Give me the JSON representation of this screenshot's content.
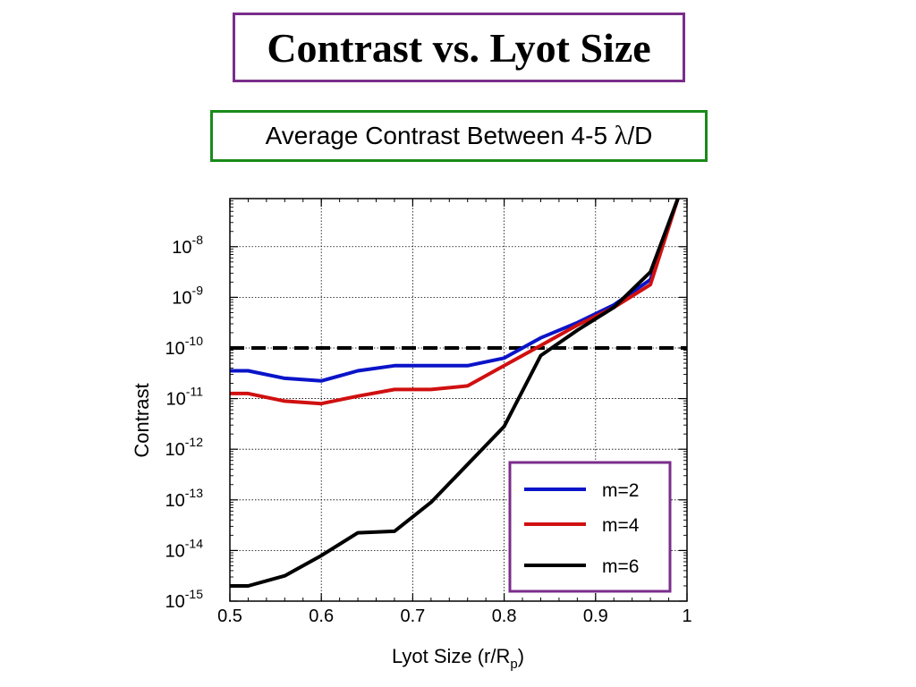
{
  "page": {
    "title": "Contrast vs. Lyot Size",
    "subtitle_prefix": "Average Contrast Between 4-5 ",
    "subtitle_lambda": "λ",
    "subtitle_suffix": "/D"
  },
  "chart_data": {
    "type": "line",
    "xlabel": "Lyot Size (r/R",
    "xlabel_sub": "p",
    "xlabel_close": ")",
    "ylabel": "Contrast",
    "xlim": [
      0.5,
      1.0
    ],
    "ylim_log10": [
      -15,
      -7.05
    ],
    "x_ticks": [
      {
        "value": 0.5,
        "label": "0.5"
      },
      {
        "value": 0.6,
        "label": "0.6"
      },
      {
        "value": 0.7,
        "label": "0.7"
      },
      {
        "value": 0.8,
        "label": "0.8"
      },
      {
        "value": 0.9,
        "label": "0.9"
      },
      {
        "value": 1.0,
        "label": "1"
      }
    ],
    "y_ticks": [
      {
        "exp": -8,
        "base": "10",
        "sup": "-8"
      },
      {
        "exp": -9,
        "base": "10",
        "sup": "-9"
      },
      {
        "exp": -10,
        "base": "10",
        "sup": "-10"
      },
      {
        "exp": -11,
        "base": "10",
        "sup": "-11"
      },
      {
        "exp": -12,
        "base": "10",
        "sup": "-12"
      },
      {
        "exp": -13,
        "base": "10",
        "sup": "-13"
      },
      {
        "exp": -14,
        "base": "10",
        "sup": "-14"
      },
      {
        "exp": -15,
        "base": "10",
        "sup": "-15"
      }
    ],
    "grid": true,
    "y_scale": "log",
    "reference_line": {
      "y_log10": -10,
      "style": "dashed",
      "color": "#000000"
    },
    "legend_position": "bottom-right",
    "series": [
      {
        "name": "m=2",
        "color": "#0a14c8",
        "x": [
          0.5,
          0.52,
          0.56,
          0.6,
          0.64,
          0.68,
          0.72,
          0.76,
          0.8,
          0.84,
          0.88,
          0.92,
          0.96,
          0.99
        ],
        "log10_y": [
          -10.45,
          -10.45,
          -10.6,
          -10.65,
          -10.45,
          -10.35,
          -10.35,
          -10.35,
          -10.2,
          -9.8,
          -9.5,
          -9.15,
          -8.65,
          -7.05
        ]
      },
      {
        "name": "m=4",
        "color": "#d01010",
        "x": [
          0.5,
          0.52,
          0.56,
          0.6,
          0.64,
          0.68,
          0.72,
          0.76,
          0.8,
          0.84,
          0.88,
          0.92,
          0.96,
          0.99
        ],
        "log10_y": [
          -10.9,
          -10.9,
          -11.05,
          -11.1,
          -10.95,
          -10.82,
          -10.82,
          -10.75,
          -10.35,
          -9.95,
          -9.55,
          -9.2,
          -8.75,
          -7.05
        ]
      },
      {
        "name": "m=6",
        "color": "#000000",
        "x": [
          0.5,
          0.52,
          0.56,
          0.6,
          0.64,
          0.68,
          0.72,
          0.76,
          0.8,
          0.84,
          0.88,
          0.92,
          0.96,
          0.99
        ],
        "log10_y": [
          -14.7,
          -14.7,
          -14.5,
          -14.1,
          -13.65,
          -13.62,
          -13.05,
          -12.3,
          -11.55,
          -10.15,
          -9.65,
          -9.2,
          -8.5,
          -7.05
        ]
      }
    ]
  }
}
